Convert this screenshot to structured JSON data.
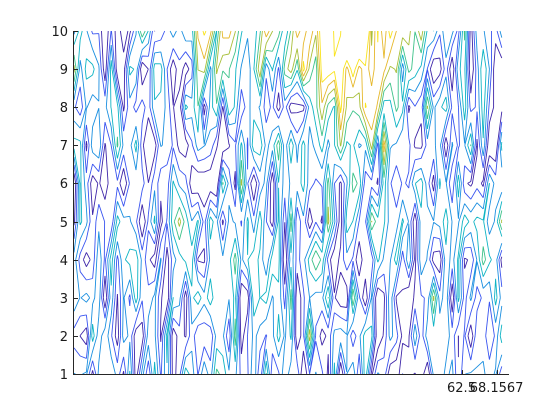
{
  "chart_data": {
    "type": "contour",
    "title": "",
    "xlabel": "",
    "ylabel": "",
    "ylim": [
      1,
      10
    ],
    "y_ticks": [
      "1",
      "2",
      "3",
      "4",
      "5",
      "6",
      "7",
      "8",
      "9",
      "10"
    ],
    "x_tick_labels": [
      "62.5",
      "68.1567"
    ],
    "xlim": [
      0,
      70
    ],
    "grid": false,
    "legend": "none",
    "colormap": [
      "#3e26a8",
      "#3a55f0",
      "#1b8fe0",
      "#0fb4c4",
      "#3ec28a",
      "#a8bf3a",
      "#e6b82c",
      "#f9e31c"
    ],
    "levels": [
      0.5,
      0.9,
      1.3,
      1.7,
      2.1,
      2.5,
      2.9,
      3.3
    ],
    "ridge_peak_x": 46,
    "ridge_bottom_y": 4.6
  }
}
